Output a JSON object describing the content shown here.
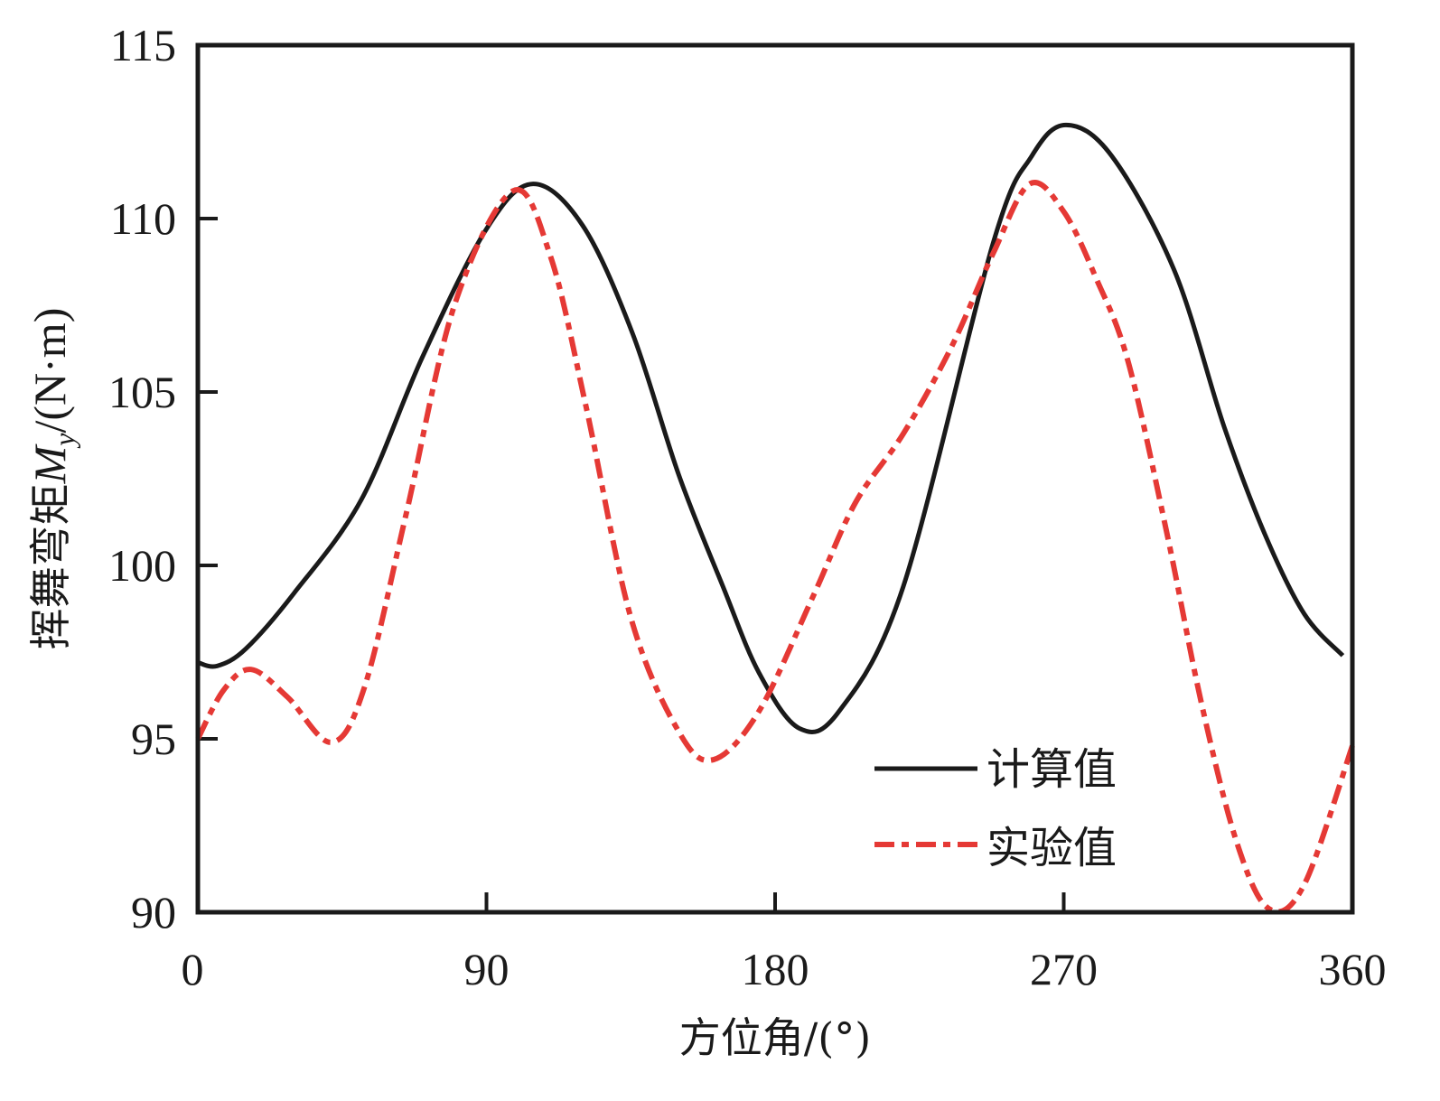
{
  "chart_data": {
    "type": "line",
    "title": "",
    "xlabel": "方位角/(°)",
    "ylabel": "挥舞弯矩M_y/(N·m)",
    "ylabel_parts": {
      "prefix": "挥舞弯矩",
      "symbol": "M",
      "subscript": "y",
      "unit": "/(N·m)"
    },
    "xlim": [
      0,
      360
    ],
    "ylim": [
      90,
      115
    ],
    "xticks": [
      0,
      90,
      180,
      270,
      360
    ],
    "yticks": [
      90,
      95,
      100,
      105,
      110,
      115
    ],
    "xtick_labels": [
      "0",
      "90",
      "180",
      "270",
      "360"
    ],
    "ytick_labels": [
      "90",
      "95",
      "100",
      "105",
      "110",
      "115"
    ],
    "grid": false,
    "legend_position": "bottom-right",
    "series": [
      {
        "name": "计算值",
        "color": "#1a1a1a",
        "style": "solid",
        "x": [
          0,
          6,
          15,
          30,
          51,
          70,
          90,
          104.5,
          120,
          135.5,
          150,
          163.7,
          175,
          187.6,
          200,
          220,
          248,
          260,
          270.7,
          285,
          304.5,
          320,
          332.7,
          345,
          357
        ],
        "y": [
          97.2,
          97.1,
          97.6,
          99.2,
          101.9,
          106.0,
          109.7,
          111.0,
          109.8,
          106.7,
          102.6,
          99.4,
          96.9,
          95.3,
          95.8,
          99.4,
          109.3,
          111.8,
          112.7,
          111.8,
          108.5,
          104.0,
          100.9,
          98.6,
          97.4
        ]
      },
      {
        "name": "实验值",
        "color": "#e53935",
        "style": "dashdot",
        "x": [
          0,
          8,
          16.6,
          28,
          41.7,
          52,
          65,
          80,
          98.3,
          110,
          121,
          135,
          150,
          160.8,
          175,
          191.8,
          205,
          220,
          235,
          248,
          259.4,
          270,
          280,
          290,
          302,
          313,
          324,
          334,
          345,
          360
        ],
        "y": [
          95.0,
          96.4,
          97.0,
          96.2,
          94.9,
          96.5,
          101.5,
          107.5,
          110.8,
          108.9,
          104.6,
          98.5,
          95.2,
          94.4,
          95.8,
          99.1,
          101.8,
          103.8,
          106.3,
          109.0,
          111.0,
          110.2,
          108.3,
          105.9,
          101.0,
          96.0,
          92.0,
          90.1,
          90.8,
          94.8
        ]
      }
    ]
  }
}
